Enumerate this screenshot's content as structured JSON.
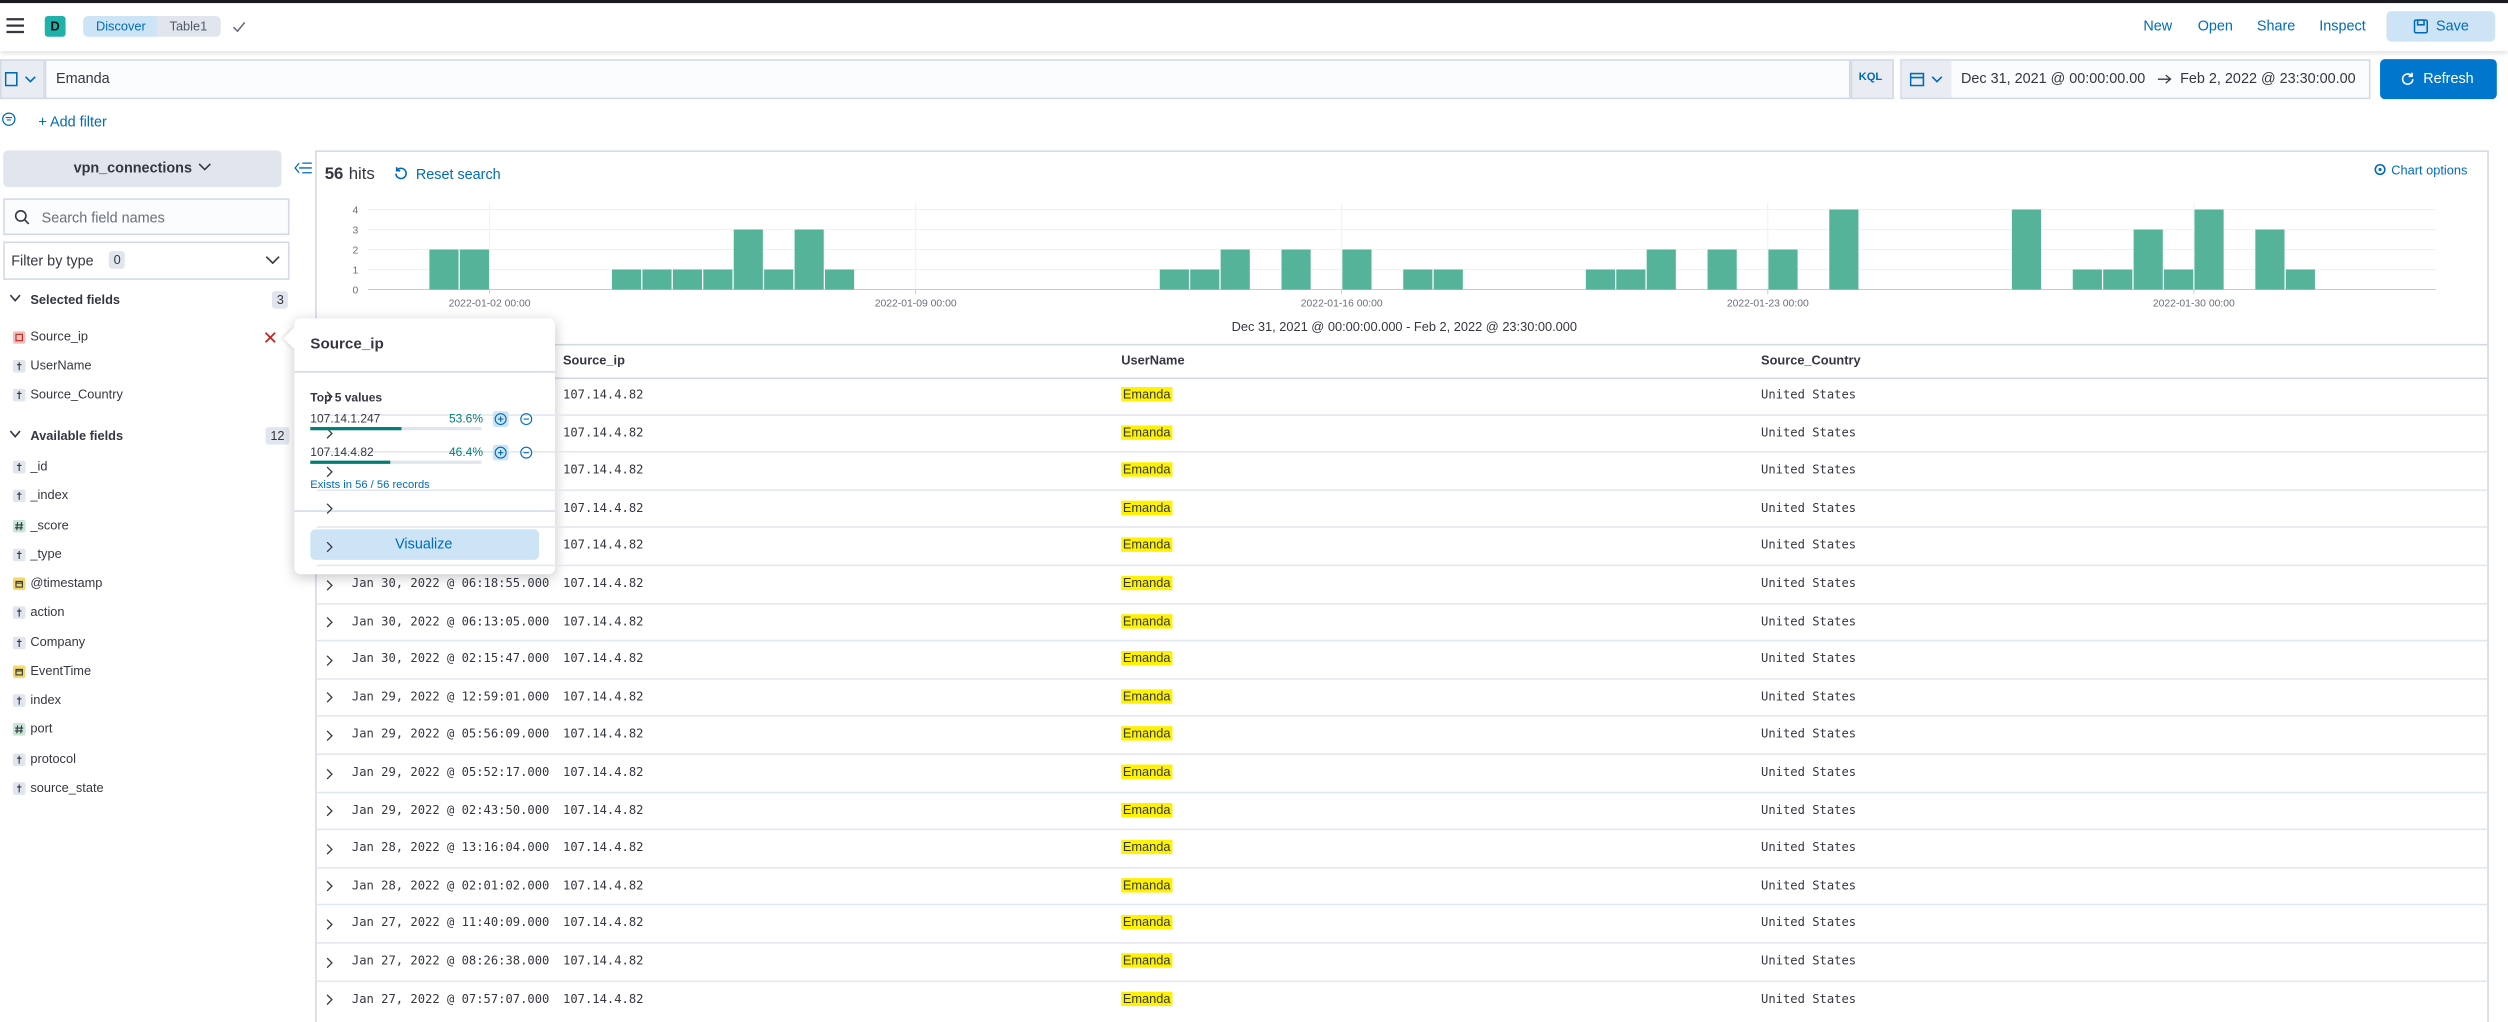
{
  "header": {
    "avatar": "D",
    "breadcrumbs": [
      "Discover",
      "Table1"
    ],
    "links": [
      "New",
      "Open",
      "Share",
      "Inspect"
    ],
    "save": "Save"
  },
  "query": {
    "text": "Emanda",
    "language": "KQL",
    "start": "Dec 31, 2021 @ 00:00:00.00",
    "end": "Feb 2, 2022 @ 23:30:00.00",
    "refresh": "Refresh",
    "add_filter": "+ Add filter"
  },
  "sidebar": {
    "index": "vpn_connections",
    "search_placeholder": "Search field names",
    "filter_by_type": "Filter by type",
    "filter_count": 0,
    "selected_title": "Selected fields",
    "selected_count": 3,
    "selected": [
      {
        "name": "Source_ip",
        "kind": "ip"
      },
      {
        "name": "UserName",
        "kind": "string"
      },
      {
        "name": "Source_Country",
        "kind": "string"
      }
    ],
    "available_title": "Available fields",
    "available_count": 12,
    "available": [
      {
        "name": "_id",
        "kind": "string"
      },
      {
        "name": "_index",
        "kind": "string"
      },
      {
        "name": "_score",
        "kind": "number"
      },
      {
        "name": "_type",
        "kind": "string"
      },
      {
        "name": "@timestamp",
        "kind": "date"
      },
      {
        "name": "action",
        "kind": "string"
      },
      {
        "name": "Company",
        "kind": "string"
      },
      {
        "name": "EventTime",
        "kind": "date"
      },
      {
        "name": "index",
        "kind": "string"
      },
      {
        "name": "port",
        "kind": "number"
      },
      {
        "name": "protocol",
        "kind": "string"
      },
      {
        "name": "source_state",
        "kind": "string"
      }
    ]
  },
  "hits": {
    "count": 56,
    "label": "hits",
    "reset": "Reset search",
    "chart_options": "Chart options"
  },
  "chart_data": {
    "type": "bar",
    "subtitle": "Dec 31, 2021 @ 00:00:00.000 - Feb 2, 2022 @ 23:30:00.000",
    "color": "#54b399",
    "grid": true,
    "xlim": [
      "2021-12-31 00:00",
      "2022-02-02 23:30"
    ],
    "xticks": [
      "2022-01-02 00:00",
      "2022-01-09 00:00",
      "2022-01-16 00:00",
      "2022-01-23 00:00",
      "2022-01-30 00:00"
    ],
    "ylim": [
      0,
      4
    ],
    "yticks": [
      0,
      1,
      2,
      3,
      4
    ],
    "x": [
      "2022-01-01 00:00",
      "2022-01-01 12:00",
      "2022-01-04 00:00",
      "2022-01-04 12:00",
      "2022-01-05 00:00",
      "2022-01-05 12:00",
      "2022-01-06 00:00",
      "2022-01-06 12:00",
      "2022-01-07 00:00",
      "2022-01-07 12:00",
      "2022-01-13 00:00",
      "2022-01-13 12:00",
      "2022-01-14 00:00",
      "2022-01-15 00:00",
      "2022-01-16 00:00",
      "2022-01-17 00:00",
      "2022-01-17 12:00",
      "2022-01-20 00:00",
      "2022-01-20 12:00",
      "2022-01-21 00:00",
      "2022-01-22 00:00",
      "2022-01-23 00:00",
      "2022-01-24 00:00",
      "2022-01-27 00:00",
      "2022-01-28 00:00",
      "2022-01-28 12:00",
      "2022-01-29 00:00",
      "2022-01-29 12:00",
      "2022-01-30 00:00",
      "2022-01-31 00:00",
      "2022-01-31 12:00"
    ],
    "values": [
      2,
      2,
      1,
      1,
      1,
      1,
      3,
      1,
      3,
      1,
      1,
      1,
      2,
      2,
      2,
      1,
      1,
      1,
      1,
      2,
      2,
      2,
      4,
      4,
      1,
      1,
      3,
      1,
      4,
      3,
      1
    ]
  },
  "table": {
    "columns": [
      "Source_ip",
      "UserName",
      "Source_Country"
    ],
    "rows": [
      {
        "ip": "107.14.4.82",
        "user": "Emanda",
        "country": "United States"
      },
      {
        "ip": "107.14.4.82",
        "user": "Emanda",
        "country": "United States"
      },
      {
        "ip": "107.14.4.82",
        "user": "Emanda",
        "country": "United States"
      },
      {
        "ip": "107.14.4.82",
        "user": "Emanda",
        "country": "United States"
      },
      {
        "ip": "107.14.4.82",
        "user": "Emanda",
        "country": "United States"
      },
      {
        "time": "Jan 30, 2022 @ 06:18:55.000",
        "ip": "107.14.4.82",
        "user": "Emanda",
        "country": "United States"
      },
      {
        "time": "Jan 30, 2022 @ 06:13:05.000",
        "ip": "107.14.4.82",
        "user": "Emanda",
        "country": "United States"
      },
      {
        "time": "Jan 30, 2022 @ 02:15:47.000",
        "ip": "107.14.4.82",
        "user": "Emanda",
        "country": "United States"
      },
      {
        "time": "Jan 29, 2022 @ 12:59:01.000",
        "ip": "107.14.4.82",
        "user": "Emanda",
        "country": "United States"
      },
      {
        "time": "Jan 29, 2022 @ 05:56:09.000",
        "ip": "107.14.4.82",
        "user": "Emanda",
        "country": "United States"
      },
      {
        "time": "Jan 29, 2022 @ 05:52:17.000",
        "ip": "107.14.4.82",
        "user": "Emanda",
        "country": "United States"
      },
      {
        "time": "Jan 29, 2022 @ 02:43:50.000",
        "ip": "107.14.4.82",
        "user": "Emanda",
        "country": "United States"
      },
      {
        "time": "Jan 28, 2022 @ 13:16:04.000",
        "ip": "107.14.4.82",
        "user": "Emanda",
        "country": "United States"
      },
      {
        "time": "Jan 28, 2022 @ 02:01:02.000",
        "ip": "107.14.4.82",
        "user": "Emanda",
        "country": "United States"
      },
      {
        "time": "Jan 27, 2022 @ 11:40:09.000",
        "ip": "107.14.4.82",
        "user": "Emanda",
        "country": "United States"
      },
      {
        "time": "Jan 27, 2022 @ 08:26:38.000",
        "ip": "107.14.4.82",
        "user": "Emanda",
        "country": "United States"
      },
      {
        "time": "Jan 27, 2022 @ 07:57:07.000",
        "ip": "107.14.4.82",
        "user": "Emanda",
        "country": "United States"
      }
    ]
  },
  "popover": {
    "title": "Source_ip",
    "subtitle": "Top 5 values",
    "values": [
      {
        "name": "107.14.1.247",
        "percent": {
          "value": 53.6,
          "label": "53.6%"
        }
      },
      {
        "name": "107.14.4.82",
        "percent": {
          "value": 46.4,
          "label": "46.4%"
        }
      }
    ],
    "exists": "Exists in 56 / 56 records",
    "button": "Visualize"
  }
}
